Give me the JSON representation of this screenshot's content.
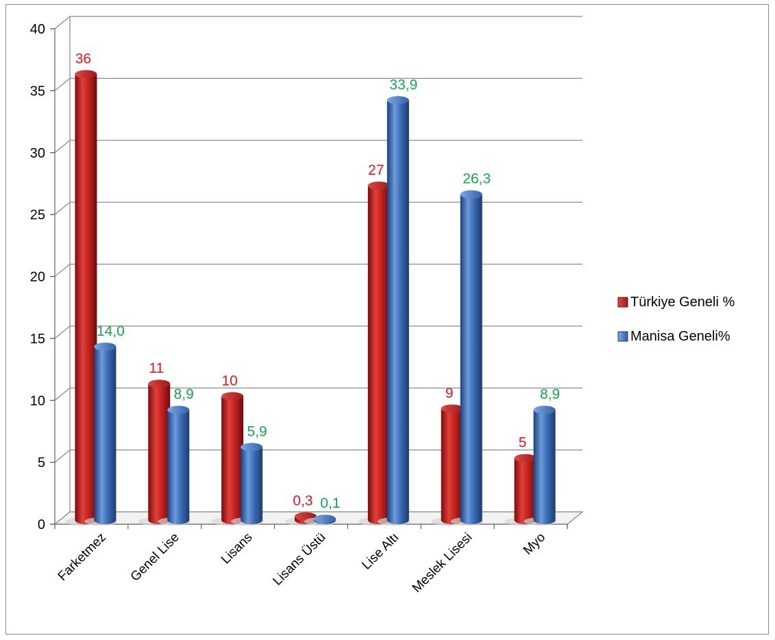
{
  "chart_data": {
    "type": "bar",
    "title": "",
    "xlabel": "",
    "ylabel": "",
    "ylim": [
      0,
      40
    ],
    "yticks": [
      "0",
      "5",
      "10",
      "15",
      "20",
      "25",
      "30",
      "35",
      "40"
    ],
    "grid": true,
    "legend_position": "right",
    "categories": [
      "Farketmez",
      "Genel Lise",
      "Lisans",
      "Lisans Üstü",
      "Lise Altı",
      "Meslek Lisesi",
      "Myo"
    ],
    "series": [
      {
        "name": "Türkiye Geneli %",
        "color": "#c0201e",
        "label_color": "#e8161b",
        "values": [
          36,
          11,
          10,
          0.3,
          27,
          9,
          5
        ],
        "labels": [
          "36",
          "11",
          "10",
          "0,3",
          "27",
          "9",
          "5"
        ]
      },
      {
        "name": "Manisa Geneli%",
        "color": "#3b6cb5",
        "label_color": "#13a84a",
        "values": [
          14.0,
          8.9,
          5.9,
          0.1,
          33.9,
          26.3,
          8.9
        ],
        "labels": [
          "14,0",
          "8,9",
          "5,9",
          "0,1",
          "33,9",
          "26,3",
          "8,9"
        ]
      }
    ]
  }
}
